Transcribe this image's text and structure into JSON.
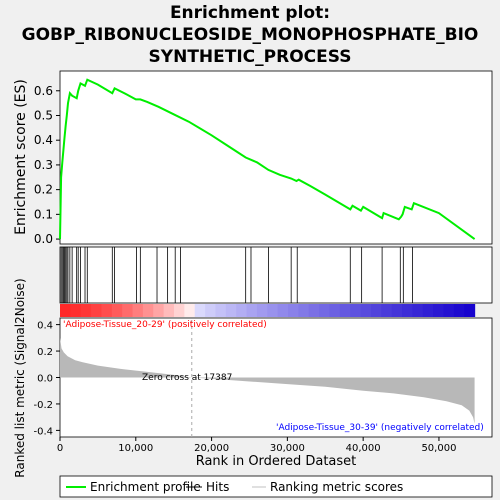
{
  "title_lines": [
    "Enrichment plot:",
    "GOBP_RIBONUCLEOSIDE_MONOPHOSPHATE_BIO",
    "SYNTHETIC_PROCESS"
  ],
  "chart_data": {
    "type": "line",
    "es_panel": {
      "ylabel": "Enrichment score (ES)",
      "yticks": [
        "0.0",
        "0.1",
        "0.2",
        "0.3",
        "0.4",
        "0.5",
        "0.6"
      ],
      "ylim": [
        -0.02,
        0.68
      ],
      "series": [
        {
          "name": "Enrichment profile",
          "color": "#00ee00",
          "x": [
            0,
            150,
            300,
            450,
            600,
            750,
            900,
            1050,
            1300,
            1600,
            2200,
            2400,
            2700,
            3300,
            3600,
            5000,
            6900,
            7200,
            8500,
            10000,
            10600,
            11500,
            13000,
            15000,
            17000,
            20000,
            22000,
            24500,
            26000,
            27500,
            29000,
            30500,
            31200,
            31500,
            33000,
            35000,
            38300,
            38600,
            39700,
            40000,
            42500,
            42700,
            44700,
            45000,
            45200,
            45500,
            46400,
            46700,
            50000,
            54700
          ],
          "y": [
            0.0,
            0.25,
            0.31,
            0.36,
            0.41,
            0.46,
            0.5,
            0.55,
            0.59,
            0.58,
            0.57,
            0.6,
            0.63,
            0.62,
            0.645,
            0.625,
            0.59,
            0.61,
            0.59,
            0.565,
            0.565,
            0.555,
            0.535,
            0.505,
            0.475,
            0.42,
            0.38,
            0.33,
            0.31,
            0.28,
            0.26,
            0.245,
            0.235,
            0.24,
            0.215,
            0.18,
            0.12,
            0.135,
            0.115,
            0.13,
            0.085,
            0.105,
            0.08,
            0.09,
            0.1,
            0.13,
            0.12,
            0.145,
            0.105,
            0.0
          ]
        }
      ]
    },
    "hits": {
      "name": "Hits",
      "x": [
        150,
        300,
        450,
        600,
        750,
        900,
        1050,
        1300,
        1600,
        2200,
        2400,
        2700,
        3300,
        3600,
        6900,
        7200,
        10100,
        10600,
        12800,
        14200,
        15200,
        15900,
        24500,
        25200,
        27500,
        30500,
        31300,
        38300,
        39800,
        42500,
        44900,
        45300,
        46500
      ]
    },
    "metric_panel": {
      "ylabel": "Ranked list metric (Signal2Noise)",
      "yticks": [
        "0.4",
        "0.2",
        "0.0",
        "-0.2",
        "-0.4"
      ],
      "ylim": [
        -0.45,
        0.45
      ],
      "profile_x": [
        0,
        200,
        500,
        1000,
        2000,
        3000,
        5000,
        8000,
        12000,
        15000,
        17387,
        20000,
        25000,
        30000,
        35000,
        40000,
        44000,
        48000,
        51000,
        53000,
        54000,
        54500,
        54700
      ],
      "profile_y": [
        0.3,
        0.22,
        0.19,
        0.16,
        0.13,
        0.115,
        0.09,
        0.065,
        0.04,
        0.02,
        0.0,
        -0.01,
        -0.03,
        -0.05,
        -0.07,
        -0.1,
        -0.12,
        -0.15,
        -0.18,
        -0.21,
        -0.25,
        -0.3,
        -0.35
      ],
      "zero_cross_label": "Zero cross at 17387",
      "zero_cross_x": 17387,
      "positive_label": "'Adipose-Tissue_20-29' (positively correlated)",
      "negative_label": "'Adipose-Tissue_30-39' (negatively correlated)"
    },
    "xlabel": "Rank in Ordered Dataset",
    "xticks": [
      0,
      10000,
      20000,
      30000,
      40000,
      50000
    ],
    "xtick_labels": [
      "0",
      "10,000",
      "20,000",
      "30,000",
      "40,000",
      "50,000"
    ],
    "xlim": [
      0,
      57000
    ],
    "n_genes": 54700
  },
  "legend": {
    "items": [
      {
        "label": "Enrichment profile",
        "color": "#00ee00"
      },
      {
        "label": "Hits",
        "color": "#000000"
      },
      {
        "label": "Ranking metric scores",
        "color": "#c0c0c0"
      }
    ]
  },
  "colors": {
    "hit_line": "#000000",
    "metric_fill": "#b8b8b8",
    "positive_text": "#ff0000",
    "negative_text": "#0000ff",
    "heat_pos": "#ff0000",
    "heat_neg": "#0000ff"
  }
}
